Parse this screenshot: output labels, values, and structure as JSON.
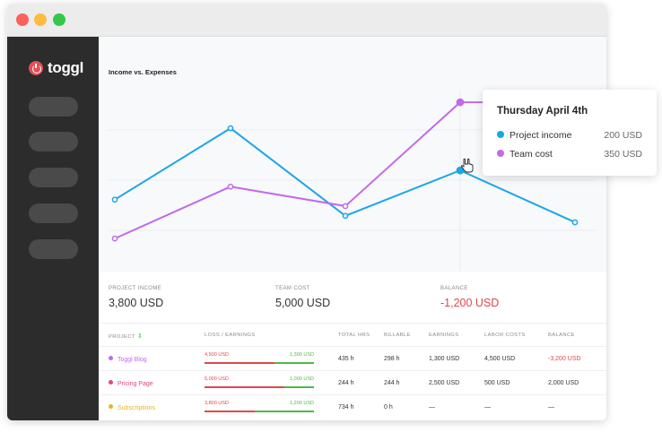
{
  "window": {
    "controls": [
      "close",
      "minimize",
      "maximize"
    ]
  },
  "sidebar": {
    "logo_text": "toggl",
    "logo_icon": "power-icon",
    "nav_count": 5
  },
  "chart": {
    "title": "Income vs. Expenses"
  },
  "chart_data": {
    "type": "line",
    "title": "Income vs. Expenses",
    "x": [
      1,
      2,
      3,
      4,
      5
    ],
    "series": [
      {
        "name": "Project income",
        "color": "#1aa6e8",
        "values": [
          50,
          270,
          0,
          140,
          -20
        ]
      },
      {
        "name": "Team cost",
        "color": "#c26ae8",
        "values": [
          -70,
          90,
          30,
          350,
          350
        ]
      }
    ],
    "grid": true,
    "legend": "none"
  },
  "stats": [
    {
      "label": "PROJECT INCOME",
      "value": "3,800 USD",
      "negative": false
    },
    {
      "label": "TEAM COST",
      "value": "5,000 USD",
      "negative": false
    },
    {
      "label": "BALANCE",
      "value": "-1,200 USD",
      "negative": true
    }
  ],
  "table": {
    "headers": {
      "project": "PROJECT",
      "loss_earnings": "LOSS / EARNINGS",
      "total_hrs": "TOTAL HRS",
      "billable": "BILLABLE",
      "earnings": "EARNINGS",
      "labor_costs": "LABOR COSTS",
      "balance": "BALANCE"
    },
    "rows": [
      {
        "project": "Toggl Blog",
        "color": "#c26ae8",
        "loss": "4,500 USD",
        "earn": "1,300 USD",
        "loss_frac": 0.64,
        "earn_frac": 0.36,
        "total_hrs": "435 h",
        "billable": "298 h",
        "earnings": "1,300 USD",
        "labor_costs": "4,500 USD",
        "balance": "-3,200 USD",
        "balance_negative": true
      },
      {
        "project": "Pricing Page",
        "color": "#e0477a",
        "loss": "5,000 USD",
        "earn": "1,000 USD",
        "loss_frac": 0.73,
        "earn_frac": 0.27,
        "total_hrs": "244 h",
        "billable": "244 h",
        "earnings": "2,500 USD",
        "labor_costs": "500 USD",
        "balance": "2,000 USD",
        "balance_negative": false
      },
      {
        "project": "Subscriptions",
        "color": "#e8b22a",
        "loss": "3,800 USD",
        "earn": "1,200 USD",
        "loss_frac": 0.46,
        "earn_frac": 0.54,
        "total_hrs": "734 h",
        "billable": "0 h",
        "earnings": "—",
        "labor_costs": "—",
        "balance": "—",
        "balance_negative": false
      }
    ]
  },
  "tooltip": {
    "title": "Thursday April 4th",
    "rows": [
      {
        "label": "Project income",
        "value": "200 USD",
        "color": "#1aa6e8"
      },
      {
        "label": "Team cost",
        "value": "350 USD",
        "color": "#c26ae8"
      }
    ]
  },
  "cursor_icon": "hand-pointer-icon"
}
